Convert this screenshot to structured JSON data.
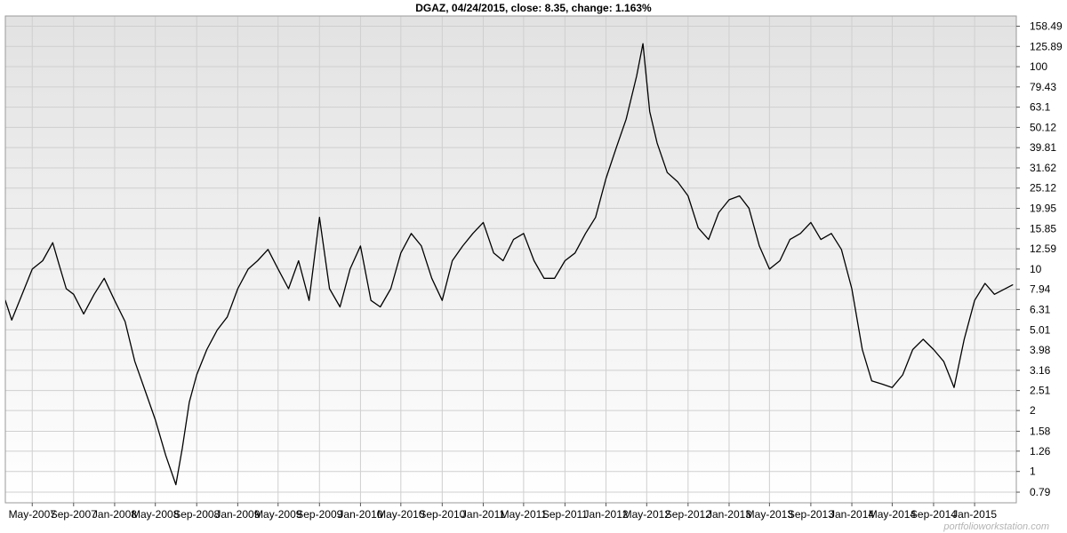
{
  "colors": {
    "plot_background_top": "#e2e2e2",
    "plot_background_bottom": "#ffffff",
    "grid": "#cfcfcf",
    "line": "#000000",
    "watermark": "#b4b4b4"
  },
  "watermark": "portfolioworkstation.com",
  "chart_data": {
    "type": "line",
    "title": "DGAZ, 04/24/2015, close: 8.35, change: 1.163%",
    "xlabel": "",
    "ylabel": "",
    "y_scale": "log",
    "ylim": [
      0.7,
      178
    ],
    "xlim": [
      "2007-02-10",
      "2015-05-05"
    ],
    "grid": true,
    "legend": "none",
    "y_ticks": [
      "0.79",
      "1",
      "1.26",
      "1.58",
      "2",
      "2.51",
      "3.16",
      "3.98",
      "5.01",
      "6.31",
      "7.94",
      "10",
      "12.59",
      "15.85",
      "19.95",
      "25.12",
      "31.62",
      "39.81",
      "50.12",
      "63.1",
      "79.43",
      "100",
      "125.89",
      "158.49"
    ],
    "x_ticks": [
      {
        "date": "2007-05-01",
        "label": "May-2007"
      },
      {
        "date": "2007-09-01",
        "label": "Sep-2007"
      },
      {
        "date": "2008-01-01",
        "label": "Jan-2008"
      },
      {
        "date": "2008-05-01",
        "label": "May-2008"
      },
      {
        "date": "2008-09-01",
        "label": "Sep-2008"
      },
      {
        "date": "2009-01-01",
        "label": "Jan-2009"
      },
      {
        "date": "2009-05-01",
        "label": "May-2009"
      },
      {
        "date": "2009-09-01",
        "label": "Sep-2009"
      },
      {
        "date": "2010-01-01",
        "label": "Jan-2010"
      },
      {
        "date": "2010-05-01",
        "label": "May-2010"
      },
      {
        "date": "2010-09-01",
        "label": "Sep-2010"
      },
      {
        "date": "2011-01-01",
        "label": "Jan-2011"
      },
      {
        "date": "2011-05-01",
        "label": "May-2011"
      },
      {
        "date": "2011-09-01",
        "label": "Sep-2011"
      },
      {
        "date": "2012-01-01",
        "label": "Jan-2012"
      },
      {
        "date": "2012-05-01",
        "label": "May-2012"
      },
      {
        "date": "2012-09-01",
        "label": "Sep-2012"
      },
      {
        "date": "2013-01-01",
        "label": "Jan-2013"
      },
      {
        "date": "2013-05-01",
        "label": "May-2013"
      },
      {
        "date": "2013-09-01",
        "label": "Sep-2013"
      },
      {
        "date": "2014-01-01",
        "label": "Jan-2014"
      },
      {
        "date": "2014-05-01",
        "label": "May-2014"
      },
      {
        "date": "2014-09-01",
        "label": "Sep-2014"
      },
      {
        "date": "2015-01-01",
        "label": "Jan-2015"
      }
    ],
    "series": [
      {
        "name": "",
        "points": [
          [
            "2007-02-10",
            7.0
          ],
          [
            "2007-03-01",
            5.6
          ],
          [
            "2007-04-01",
            7.5
          ],
          [
            "2007-05-01",
            10.0
          ],
          [
            "2007-06-01",
            11.0
          ],
          [
            "2007-07-01",
            13.5
          ],
          [
            "2007-07-20",
            10.5
          ],
          [
            "2007-08-10",
            8.0
          ],
          [
            "2007-09-01",
            7.5
          ],
          [
            "2007-10-01",
            6.0
          ],
          [
            "2007-11-01",
            7.5
          ],
          [
            "2007-12-01",
            9.0
          ],
          [
            "2008-01-01",
            7.0
          ],
          [
            "2008-02-01",
            5.5
          ],
          [
            "2008-03-01",
            3.5
          ],
          [
            "2008-04-01",
            2.5
          ],
          [
            "2008-05-01",
            1.8
          ],
          [
            "2008-06-01",
            1.2
          ],
          [
            "2008-07-01",
            0.86
          ],
          [
            "2008-07-20",
            1.3
          ],
          [
            "2008-08-10",
            2.2
          ],
          [
            "2008-09-01",
            3.0
          ],
          [
            "2008-10-01",
            4.0
          ],
          [
            "2008-11-01",
            5.0
          ],
          [
            "2008-12-01",
            5.8
          ],
          [
            "2009-01-01",
            8.0
          ],
          [
            "2009-02-01",
            10.0
          ],
          [
            "2009-03-01",
            11.0
          ],
          [
            "2009-04-01",
            12.5
          ],
          [
            "2009-05-01",
            10.0
          ],
          [
            "2009-06-01",
            8.0
          ],
          [
            "2009-07-01",
            11.0
          ],
          [
            "2009-08-01",
            7.0
          ],
          [
            "2009-09-01",
            18.0
          ],
          [
            "2009-10-01",
            8.0
          ],
          [
            "2009-11-01",
            6.5
          ],
          [
            "2009-12-01",
            10.0
          ],
          [
            "2010-01-01",
            13.0
          ],
          [
            "2010-02-01",
            7.0
          ],
          [
            "2010-03-01",
            6.5
          ],
          [
            "2010-04-01",
            8.0
          ],
          [
            "2010-05-01",
            12.0
          ],
          [
            "2010-06-01",
            15.0
          ],
          [
            "2010-07-01",
            13.0
          ],
          [
            "2010-08-01",
            9.0
          ],
          [
            "2010-09-01",
            7.0
          ],
          [
            "2010-10-01",
            11.0
          ],
          [
            "2010-11-01",
            13.0
          ],
          [
            "2010-12-01",
            15.0
          ],
          [
            "2011-01-01",
            17.0
          ],
          [
            "2011-02-01",
            12.0
          ],
          [
            "2011-03-01",
            11.0
          ],
          [
            "2011-04-01",
            14.0
          ],
          [
            "2011-05-01",
            15.0
          ],
          [
            "2011-06-01",
            11.0
          ],
          [
            "2011-07-01",
            9.0
          ],
          [
            "2011-08-01",
            9.0
          ],
          [
            "2011-09-01",
            11.0
          ],
          [
            "2011-10-01",
            12.0
          ],
          [
            "2011-11-01",
            15.0
          ],
          [
            "2011-12-01",
            18.0
          ],
          [
            "2012-01-01",
            28.0
          ],
          [
            "2012-02-01",
            40.0
          ],
          [
            "2012-03-01",
            55.0
          ],
          [
            "2012-04-01",
            90.0
          ],
          [
            "2012-04-20",
            130.0
          ],
          [
            "2012-05-10",
            60.0
          ],
          [
            "2012-06-01",
            42.0
          ],
          [
            "2012-07-01",
            30.0
          ],
          [
            "2012-08-01",
            27.0
          ],
          [
            "2012-09-01",
            23.0
          ],
          [
            "2012-10-01",
            16.0
          ],
          [
            "2012-11-01",
            14.0
          ],
          [
            "2012-12-01",
            19.0
          ],
          [
            "2013-01-01",
            22.0
          ],
          [
            "2013-02-01",
            23.0
          ],
          [
            "2013-03-01",
            20.0
          ],
          [
            "2013-04-01",
            13.0
          ],
          [
            "2013-05-01",
            10.0
          ],
          [
            "2013-06-01",
            11.0
          ],
          [
            "2013-07-01",
            14.0
          ],
          [
            "2013-08-01",
            15.0
          ],
          [
            "2013-09-01",
            17.0
          ],
          [
            "2013-10-01",
            14.0
          ],
          [
            "2013-11-01",
            15.0
          ],
          [
            "2013-12-01",
            12.5
          ],
          [
            "2014-01-01",
            8.0
          ],
          [
            "2014-02-01",
            4.0
          ],
          [
            "2014-03-01",
            2.8
          ],
          [
            "2014-04-01",
            2.7
          ],
          [
            "2014-05-01",
            2.6
          ],
          [
            "2014-06-01",
            3.0
          ],
          [
            "2014-07-01",
            4.0
          ],
          [
            "2014-08-01",
            4.5
          ],
          [
            "2014-09-01",
            4.0
          ],
          [
            "2014-10-01",
            3.5
          ],
          [
            "2014-11-01",
            2.6
          ],
          [
            "2014-12-01",
            4.5
          ],
          [
            "2015-01-01",
            7.0
          ],
          [
            "2015-02-01",
            8.5
          ],
          [
            "2015-03-01",
            7.5
          ],
          [
            "2015-04-24",
            8.35
          ]
        ]
      }
    ]
  }
}
